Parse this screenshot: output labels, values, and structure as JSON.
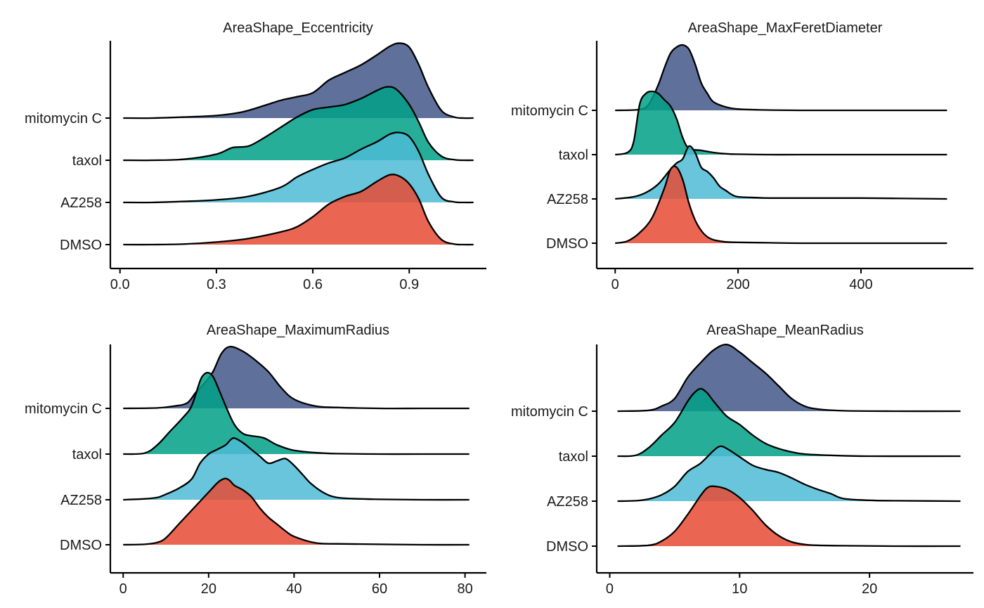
{
  "colors": {
    "mitomycin C": "#43588A",
    "taxol": "#00A087",
    "AZ258": "#4DBBD5",
    "DMSO": "#E64B35"
  },
  "chart_data": [
    {
      "type": "ridgeline",
      "title": "AreaShape_Eccentricity",
      "categories": [
        "mitomycin C",
        "taxol",
        "AZ258",
        "DMSO"
      ],
      "xlim": [
        -0.03,
        1.14
      ],
      "xticks": [
        0.0,
        0.3,
        0.6,
        0.9
      ],
      "xtick_labels": [
        "0.0",
        "0.3",
        "0.6",
        "0.9"
      ],
      "grid": false,
      "series": [
        {
          "name": "mitomycin C",
          "x": [
            0.01,
            0.1,
            0.2,
            0.3,
            0.38,
            0.45,
            0.5,
            0.55,
            0.6,
            0.65,
            0.7,
            0.75,
            0.8,
            0.84,
            0.87,
            0.9,
            0.93,
            0.96,
            1.0,
            1.04,
            1.07,
            1.1
          ],
          "y": [
            0,
            0,
            0.02,
            0.05,
            0.12,
            0.25,
            0.35,
            0.42,
            0.5,
            0.75,
            0.9,
            1.05,
            1.25,
            1.42,
            1.48,
            1.4,
            1.05,
            0.6,
            0.15,
            0.02,
            0,
            0
          ]
        },
        {
          "name": "taxol",
          "x": [
            0.01,
            0.1,
            0.2,
            0.3,
            0.35,
            0.4,
            0.45,
            0.5,
            0.55,
            0.6,
            0.65,
            0.7,
            0.75,
            0.8,
            0.83,
            0.86,
            0.9,
            0.93,
            0.96,
            1.0,
            1.04,
            1.07,
            1.1
          ],
          "y": [
            0,
            0,
            0.02,
            0.12,
            0.25,
            0.28,
            0.45,
            0.65,
            0.85,
            1.0,
            1.05,
            1.1,
            1.22,
            1.38,
            1.45,
            1.4,
            1.1,
            0.75,
            0.35,
            0.08,
            0.01,
            0,
            0
          ]
        },
        {
          "name": "AZ258",
          "x": [
            0.01,
            0.1,
            0.2,
            0.3,
            0.4,
            0.5,
            0.55,
            0.6,
            0.65,
            0.7,
            0.75,
            0.8,
            0.84,
            0.87,
            0.9,
            0.93,
            0.96,
            1.0,
            1.04,
            1.07,
            1.1
          ],
          "y": [
            0,
            0,
            0.02,
            0.05,
            0.12,
            0.3,
            0.5,
            0.65,
            0.78,
            0.88,
            1.05,
            1.2,
            1.35,
            1.38,
            1.3,
            1.0,
            0.55,
            0.1,
            0.01,
            0,
            0
          ]
        },
        {
          "name": "DMSO",
          "x": [
            0.01,
            0.1,
            0.2,
            0.3,
            0.4,
            0.5,
            0.55,
            0.6,
            0.65,
            0.7,
            0.75,
            0.8,
            0.84,
            0.87,
            0.9,
            0.93,
            0.96,
            1.0,
            1.04,
            1.07,
            1.1
          ],
          "y": [
            0,
            0,
            0.01,
            0.05,
            0.12,
            0.25,
            0.35,
            0.55,
            0.8,
            0.95,
            1.05,
            1.25,
            1.38,
            1.35,
            1.2,
            0.9,
            0.45,
            0.1,
            0.01,
            0,
            0
          ]
        }
      ]
    },
    {
      "type": "ridgeline",
      "title": "AreaShape_MaxFeretDiameter",
      "categories": [
        "mitomycin C",
        "taxol",
        "AZ258",
        "DMSO"
      ],
      "xlim": [
        -30,
        583
      ],
      "xticks": [
        0,
        200,
        400
      ],
      "xtick_labels": [
        "0",
        "200",
        "400"
      ],
      "grid": false,
      "series": [
        {
          "name": "mitomycin C",
          "x": [
            0,
            40,
            55,
            70,
            80,
            90,
            100,
            110,
            120,
            130,
            140,
            150,
            160,
            180,
            200,
            240,
            300,
            400,
            540
          ],
          "y": [
            0,
            0.02,
            0.15,
            0.6,
            1.0,
            1.35,
            1.5,
            1.55,
            1.45,
            1.1,
            0.65,
            0.4,
            0.2,
            0.08,
            0.03,
            0.01,
            0,
            0,
            0
          ]
        },
        {
          "name": "taxol",
          "x": [
            0,
            20,
            30,
            40,
            50,
            60,
            70,
            80,
            90,
            100,
            110,
            120,
            140,
            160,
            180,
            200,
            250,
            300,
            400,
            540
          ],
          "y": [
            0,
            0.05,
            0.3,
            1.2,
            1.45,
            1.5,
            1.45,
            1.3,
            1.15,
            0.85,
            0.4,
            0.15,
            0.1,
            0.05,
            0.02,
            0.01,
            0,
            0,
            0,
            0
          ]
        },
        {
          "name": "AZ258",
          "x": [
            0,
            30,
            50,
            70,
            90,
            100,
            110,
            120,
            130,
            140,
            150,
            160,
            170,
            180,
            190,
            200,
            230,
            250,
            300,
            400,
            540
          ],
          "y": [
            0,
            0.05,
            0.15,
            0.35,
            0.7,
            0.85,
            0.95,
            1.25,
            1.1,
            0.75,
            0.65,
            0.5,
            0.3,
            0.2,
            0.1,
            0.05,
            0.03,
            0.02,
            0.02,
            0.02,
            0
          ]
        },
        {
          "name": "DMSO",
          "x": [
            0,
            20,
            40,
            60,
            80,
            90,
            100,
            110,
            120,
            130,
            140,
            150,
            160,
            170,
            180,
            200,
            250,
            300,
            400,
            540
          ],
          "y": [
            0,
            0.05,
            0.25,
            0.6,
            1.3,
            1.75,
            1.8,
            1.5,
            0.95,
            0.55,
            0.3,
            0.15,
            0.08,
            0.05,
            0.03,
            0.02,
            0.01,
            0,
            0,
            0
          ]
        }
      ]
    },
    {
      "type": "ridgeline",
      "title": "AreaShape_MaximumRadius",
      "categories": [
        "mitomycin C",
        "taxol",
        "AZ258",
        "DMSO"
      ],
      "xlim": [
        -3,
        85
      ],
      "xticks": [
        0,
        20,
        40,
        60,
        80
      ],
      "xtick_labels": [
        "0",
        "20",
        "40",
        "60",
        "80"
      ],
      "grid": false,
      "series": [
        {
          "name": "mitomycin C",
          "x": [
            0,
            8,
            12,
            15,
            17,
            19,
            21,
            23,
            25,
            28,
            31,
            34,
            37,
            40,
            45,
            50,
            60,
            70,
            81
          ],
          "y": [
            0,
            0.01,
            0.05,
            0.12,
            0.35,
            0.55,
            0.8,
            1.2,
            1.35,
            1.25,
            1.05,
            0.8,
            0.45,
            0.2,
            0.05,
            0.02,
            0,
            0,
            0
          ]
        },
        {
          "name": "taxol",
          "x": [
            0,
            5,
            8,
            11,
            14,
            16,
            18,
            19,
            20,
            21,
            22,
            24,
            26,
            28,
            30,
            33,
            36,
            40,
            45,
            50,
            60,
            70,
            81
          ],
          "y": [
            0,
            0.02,
            0.2,
            0.5,
            0.8,
            1.05,
            1.6,
            1.75,
            1.78,
            1.7,
            1.5,
            1.05,
            0.65,
            0.45,
            0.4,
            0.35,
            0.2,
            0.08,
            0.03,
            0.01,
            0,
            0,
            0
          ]
        },
        {
          "name": "AZ258",
          "x": [
            0,
            5,
            8,
            10,
            13,
            16,
            18,
            20,
            22,
            24,
            25,
            26,
            28,
            30,
            32,
            34,
            36,
            38,
            40,
            42,
            44,
            47,
            50,
            55,
            60,
            70,
            81
          ],
          "y": [
            0,
            0.02,
            0.05,
            0.12,
            0.25,
            0.45,
            0.8,
            1.0,
            1.1,
            1.2,
            1.3,
            1.35,
            1.25,
            1.1,
            0.95,
            0.8,
            0.85,
            0.9,
            0.75,
            0.55,
            0.35,
            0.15,
            0.05,
            0.02,
            0.01,
            0,
            0
          ]
        },
        {
          "name": "DMSO",
          "x": [
            0,
            5,
            8,
            10,
            13,
            16,
            18,
            20,
            22,
            23,
            24,
            25,
            26,
            28,
            30,
            32,
            34,
            36,
            38,
            40,
            45,
            50,
            60,
            70,
            81
          ],
          "y": [
            0,
            0.01,
            0.05,
            0.15,
            0.45,
            0.75,
            0.95,
            1.15,
            1.35,
            1.42,
            1.45,
            1.4,
            1.3,
            1.2,
            1.05,
            0.8,
            0.6,
            0.45,
            0.3,
            0.18,
            0.04,
            0.02,
            0.01,
            0,
            0
          ]
        }
      ]
    },
    {
      "type": "ridgeline",
      "title": "AreaShape_MeanRadius",
      "categories": [
        "mitomycin C",
        "taxol",
        "AZ258",
        "DMSO"
      ],
      "xlim": [
        -1,
        28
      ],
      "xticks": [
        0,
        10,
        20
      ],
      "xtick_labels": [
        "0",
        "10",
        "20"
      ],
      "grid": false,
      "series": [
        {
          "name": "mitomycin C",
          "x": [
            0.6,
            3,
            4,
            5,
            6,
            7,
            8,
            9,
            10,
            11,
            12,
            13,
            14,
            15,
            16,
            18,
            22,
            27
          ],
          "y": [
            0,
            0.02,
            0.12,
            0.3,
            0.8,
            1.15,
            1.45,
            1.58,
            1.4,
            1.15,
            0.9,
            0.6,
            0.3,
            0.12,
            0.05,
            0.01,
            0,
            0
          ]
        },
        {
          "name": "taxol",
          "x": [
            0.6,
            2,
            3,
            4,
            5,
            6,
            6.5,
            7,
            7.5,
            8,
            9,
            10,
            11,
            12,
            13,
            14,
            15,
            17,
            20,
            27
          ],
          "y": [
            0,
            0.02,
            0.2,
            0.5,
            0.8,
            1.3,
            1.5,
            1.6,
            1.5,
            1.3,
            0.95,
            0.75,
            0.5,
            0.3,
            0.18,
            0.1,
            0.05,
            0.02,
            0,
            0
          ]
        },
        {
          "name": "AZ258",
          "x": [
            0.6,
            2,
            3,
            4,
            5,
            6,
            7,
            8,
            8.5,
            9,
            10,
            11,
            12,
            13,
            14,
            15,
            16,
            17,
            18,
            20,
            22,
            27
          ],
          "y": [
            0,
            0.01,
            0.05,
            0.15,
            0.35,
            0.7,
            0.9,
            1.2,
            1.3,
            1.25,
            1.05,
            0.85,
            0.75,
            0.68,
            0.55,
            0.4,
            0.28,
            0.18,
            0.06,
            0.02,
            0.01,
            0
          ]
        },
        {
          "name": "DMSO",
          "x": [
            0.6,
            3,
            4,
            5,
            6,
            7,
            7.5,
            8,
            9,
            10,
            11,
            12,
            13,
            14,
            15,
            16,
            18,
            22,
            27
          ],
          "y": [
            0,
            0.02,
            0.12,
            0.35,
            0.75,
            1.2,
            1.38,
            1.42,
            1.35,
            1.15,
            0.85,
            0.5,
            0.25,
            0.1,
            0.04,
            0.02,
            0.01,
            0,
            0
          ]
        }
      ]
    }
  ]
}
